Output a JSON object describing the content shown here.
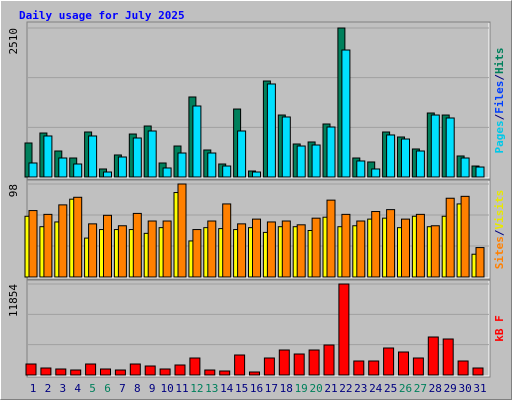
{
  "chart_data": [
    {
      "type": "bar",
      "title": "Daily usage for July 2025",
      "ylim": [
        0,
        2510
      ],
      "yticks": [
        2510
      ],
      "legend": [
        {
          "text": "Pages",
          "color": "#00c8e8"
        },
        {
          "text": "/",
          "color": "#000080"
        },
        {
          "text": "Files",
          "color": "#0040ff"
        },
        {
          "text": "/",
          "color": "#000080"
        },
        {
          "text": "Hits",
          "color": "#00805c"
        }
      ],
      "series": [
        {
          "name": "Hits",
          "color": "#00805c",
          "values": [
            573,
            741,
            438,
            320,
            758,
            135,
            371,
            724,
            859,
            236,
            522,
            1348,
            455,
            219,
            1145,
            101,
            1617,
            1044,
            556,
            590,
            893,
            2510,
            320,
            253,
            758,
            674,
            472,
            1078,
            1044,
            354,
            185
          ]
        },
        {
          "name": "Pages",
          "color": "#00e0ff",
          "values": [
            236,
            691,
            320,
            219,
            691,
            84,
            337,
            657,
            775,
            152,
            404,
            1196,
            404,
            185,
            775,
            84,
            1567,
            1011,
            522,
            539,
            842,
            2139,
            270,
            135,
            708,
            640,
            438,
            1044,
            994,
            320,
            168
          ]
        }
      ]
    },
    {
      "type": "bar",
      "ylim": [
        0,
        98
      ],
      "yticks": [
        98
      ],
      "legend": [
        {
          "text": "Sites",
          "color": "#ff8000"
        },
        {
          "text": "/",
          "color": "#000080"
        },
        {
          "text": "Visits",
          "color": "#e8e800"
        }
      ],
      "series": [
        {
          "name": "Visits",
          "color": "#ffff00",
          "values": [
            64,
            53,
            58,
            82,
            41,
            50,
            50,
            50,
            46,
            52,
            89,
            38,
            52,
            51,
            50,
            52,
            47,
            53,
            53,
            49,
            63,
            53,
            54,
            61,
            62,
            52,
            64,
            53,
            64,
            77,
            24
          ]
        },
        {
          "name": "Sites",
          "color": "#ff8000",
          "values": [
            70,
            66,
            76,
            84,
            56,
            65,
            54,
            67,
            59,
            59,
            98,
            50,
            59,
            77,
            56,
            61,
            58,
            59,
            55,
            62,
            81,
            66,
            59,
            69,
            71,
            61,
            66,
            54,
            83,
            85,
            31
          ]
        }
      ]
    },
    {
      "type": "bar",
      "ylim": [
        0,
        11854
      ],
      "yticks": [
        11854
      ],
      "legend": [
        {
          "text": "kB F",
          "color": "#ff0000"
        }
      ],
      "categories": [
        "1",
        "2",
        "3",
        "4",
        "5",
        "6",
        "7",
        "8",
        "9",
        "10",
        "11",
        "12",
        "13",
        "14",
        "15",
        "16",
        "17",
        "18",
        "19",
        "20",
        "21",
        "22",
        "23",
        "24",
        "25",
        "26",
        "27",
        "28",
        "29",
        "30",
        "31"
      ],
      "weekend": [
        4,
        5,
        11,
        12,
        18,
        19,
        25,
        26
      ],
      "label_color": "#000080",
      "weekend_color": "#00805c",
      "series": [
        {
          "name": "kB F",
          "color": "#ff0000",
          "values": [
            1433,
            912,
            782,
            651,
            1433,
            782,
            651,
            1433,
            1172,
            782,
            1303,
            2214,
            651,
            521,
            2605,
            391,
            2214,
            3257,
            2736,
            3257,
            3908,
            11854,
            1824,
            1824,
            3517,
            2996,
            2214,
            4950,
            4690,
            1824,
            912
          ]
        }
      ]
    }
  ]
}
